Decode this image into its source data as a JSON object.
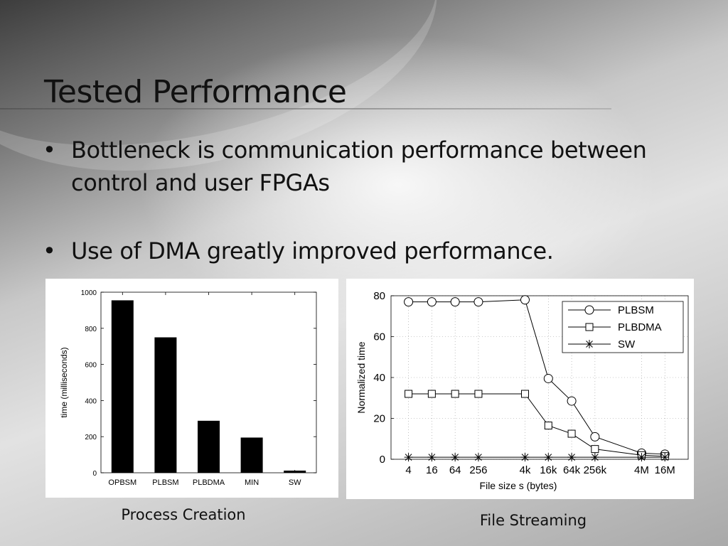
{
  "slide": {
    "title": "Tested Performance",
    "bullets": [
      "Bottleneck is communication performance between control and user FPGAs",
      "Use of DMA greatly improved performance."
    ]
  },
  "captions": {
    "left": "Process Creation",
    "right": "File Streaming"
  },
  "chart_data": [
    {
      "type": "bar",
      "categories": [
        "OPBSM",
        "PLBSM",
        "PLBDMA",
        "MIN",
        "SW"
      ],
      "values": [
        955,
        750,
        288,
        195,
        12
      ],
      "ylabel": "time (milliseconds)",
      "ylim": [
        0,
        1000
      ],
      "yticks": [
        0,
        200,
        400,
        600,
        800,
        1000
      ],
      "color": "#000000"
    },
    {
      "type": "line",
      "x_tick_labels": [
        "4",
        "16",
        "64",
        "256",
        "4k",
        "16k",
        "64k",
        "256k",
        "4M",
        "16M"
      ],
      "x_log2": [
        2,
        4,
        6,
        8,
        12,
        14,
        16,
        18,
        22,
        24
      ],
      "xlabel": "File size s (bytes)",
      "ylabel": "Normalized time",
      "ylim": [
        0,
        80
      ],
      "yticks": [
        0,
        20,
        40,
        60,
        80
      ],
      "legend_position": "top-right",
      "series": [
        {
          "name": "PLBSM",
          "marker": "circle",
          "values": [
            77,
            77,
            77,
            77,
            78,
            39.5,
            28.5,
            11,
            3,
            2.5
          ]
        },
        {
          "name": "PLBDMA",
          "marker": "square",
          "values": [
            32,
            32,
            32,
            32,
            32,
            16.5,
            12.5,
            5,
            2,
            1.5
          ]
        },
        {
          "name": "SW",
          "marker": "star",
          "values": [
            1,
            1,
            1,
            1,
            1,
            1,
            1,
            1,
            1,
            1
          ]
        }
      ]
    }
  ]
}
